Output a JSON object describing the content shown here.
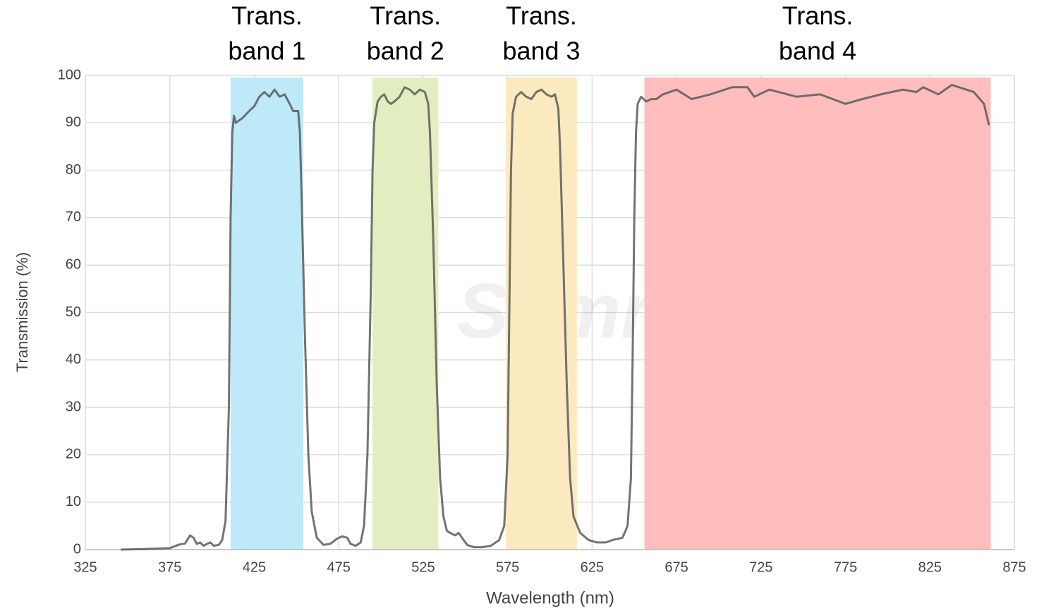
{
  "chart_data": {
    "type": "line",
    "xlabel": "Wavelength (nm)",
    "ylabel": "Transmission (%)",
    "watermark": "Semrock",
    "xlim": [
      325,
      875
    ],
    "xticks": [
      325,
      375,
      425,
      475,
      525,
      575,
      625,
      675,
      725,
      775,
      825,
      875
    ],
    "ylim": [
      0,
      100
    ],
    "yticks": [
      0,
      10,
      20,
      30,
      40,
      50,
      60,
      70,
      80,
      90,
      100
    ],
    "grid": true,
    "bands": [
      {
        "label": [
          "Trans.",
          "band 1"
        ],
        "range": [
          411,
          454
        ],
        "color": "#bde9f8"
      },
      {
        "label": [
          "Trans.",
          "band 2"
        ],
        "range": [
          495,
          534
        ],
        "color": "#e3eec0"
      },
      {
        "label": [
          "Trans.",
          "band 3"
        ],
        "range": [
          574,
          616
        ],
        "color": "#fbe9c0"
      },
      {
        "label": [
          "Trans.",
          "band 4"
        ],
        "range": [
          656,
          861
        ],
        "color": "#ffbdbd"
      }
    ],
    "series": [
      {
        "color": "#5a5a5a",
        "x": [
          346,
          360,
          375,
          380,
          384,
          387,
          389,
          391,
          393,
          395,
          397,
          399,
          401,
          404,
          406,
          408,
          410,
          411,
          412,
          413,
          414,
          418,
          422,
          425,
          428,
          431,
          434,
          437,
          440,
          443,
          446,
          448,
          451,
          452,
          453,
          455,
          457,
          459,
          462,
          466,
          470,
          474,
          477,
          480,
          482,
          485,
          488,
          490,
          492,
          494,
          495,
          496,
          498,
          500,
          502,
          504,
          506,
          508,
          511,
          514,
          517,
          520,
          523,
          526,
          528,
          529,
          531,
          533,
          535,
          537,
          539,
          541,
          544,
          546,
          548,
          551,
          555,
          560,
          565,
          570,
          573,
          575,
          576,
          577,
          578,
          580,
          583,
          586,
          589,
          592,
          595,
          598,
          601,
          603,
          605,
          606,
          608,
          610,
          612,
          614,
          618,
          623,
          628,
          633,
          637,
          643,
          646,
          648,
          649,
          650,
          651,
          652,
          654,
          657,
          660,
          663,
          667,
          675,
          684,
          695,
          708,
          717,
          721,
          730,
          746,
          760,
          775,
          785,
          796,
          809,
          817,
          821,
          830,
          838,
          851,
          857,
          860
        ],
        "values": [
          0,
          0.1,
          0.3,
          1,
          1.3,
          3,
          2.5,
          1.2,
          1.5,
          0.8,
          1.2,
          1.5,
          0.8,
          1,
          2,
          6,
          30,
          70,
          88,
          91.5,
          90,
          91,
          92.5,
          93.5,
          95.5,
          96.5,
          95.5,
          97,
          95.5,
          96,
          94,
          92.5,
          92.5,
          88,
          75,
          45,
          20,
          8,
          2.5,
          1,
          1.2,
          2.3,
          2.8,
          2.5,
          1.2,
          0.8,
          1.5,
          5,
          20,
          55,
          80,
          90,
          94.5,
          95.5,
          96,
          94.5,
          94,
          94.5,
          95.5,
          97.5,
          97,
          96,
          97,
          96.5,
          94,
          88,
          65,
          35,
          15,
          7,
          4,
          3.5,
          3,
          3.5,
          2.5,
          1,
          0.5,
          0.5,
          0.8,
          2,
          5,
          20,
          50,
          80,
          92,
          95.5,
          96.5,
          95.5,
          95,
          96.5,
          97,
          96,
          95.5,
          96,
          93,
          85,
          60,
          35,
          15,
          7,
          3.5,
          2,
          1.5,
          1.5,
          2,
          2.5,
          5,
          15,
          40,
          70,
          88,
          94,
          95.5,
          94.5,
          95,
          95,
          96,
          97,
          95,
          96,
          97.5,
          97.5,
          95.5,
          97,
          95.5,
          96,
          94,
          95,
          96,
          97,
          96.5,
          97.5,
          96,
          98,
          96.5,
          94,
          89.5
        ]
      }
    ]
  }
}
